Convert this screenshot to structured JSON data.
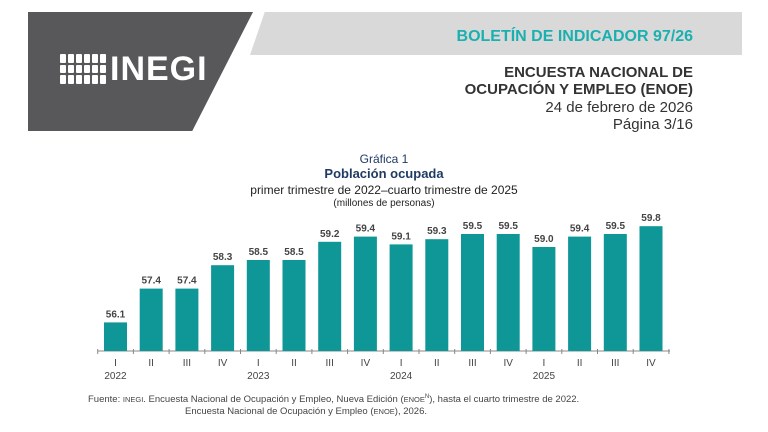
{
  "header": {
    "logo_text": "INEGI",
    "bulletin": "BOLETÍN DE INDICADOR 97/26",
    "survey_line1": "ENCUESTA NACIONAL DE",
    "survey_line2": "OCUPACIÓN Y EMPLEO (ENOE)",
    "date": "24 de febrero de 2026",
    "page": "Página 3/16",
    "colors": {
      "dark_panel": "#58585a",
      "light_band": "#d9d9d9",
      "accent": "#1bb0b0"
    }
  },
  "chart_data": {
    "type": "bar",
    "label": "Gráfica 1",
    "title": "Población ocupada",
    "subtitle": "primer trimestre de 2022–cuarto trimestre de 2025",
    "unit": "(millones de personas)",
    "categories": [
      "I",
      "II",
      "III",
      "IV",
      "I",
      "II",
      "III",
      "IV",
      "I",
      "II",
      "III",
      "IV",
      "I",
      "II",
      "III",
      "IV"
    ],
    "years": [
      {
        "label": "2022",
        "index": 0
      },
      {
        "label": "2023",
        "index": 4
      },
      {
        "label": "2024",
        "index": 8
      },
      {
        "label": "2025",
        "index": 12
      }
    ],
    "values": [
      56.1,
      57.4,
      57.4,
      58.3,
      58.5,
      58.5,
      59.2,
      59.4,
      59.1,
      59.3,
      59.5,
      59.5,
      59.0,
      59.4,
      59.5,
      59.8
    ],
    "ylim": [
      55,
      60
    ],
    "grid": false,
    "bar_color": "#0f9696"
  },
  "footer": {
    "prefix": "Fuente: ",
    "org": "INEGI",
    "line1a": ". Encuesta Nacional de Ocupación y Empleo, Nueva Edición (",
    "enoe": "ENOE",
    "sup": "N",
    "line1b": "), hasta el cuarto trimestre de 2022.",
    "line2a": "Encuesta Nacional de Ocupación y Empleo (",
    "line2b": "), 2026."
  }
}
